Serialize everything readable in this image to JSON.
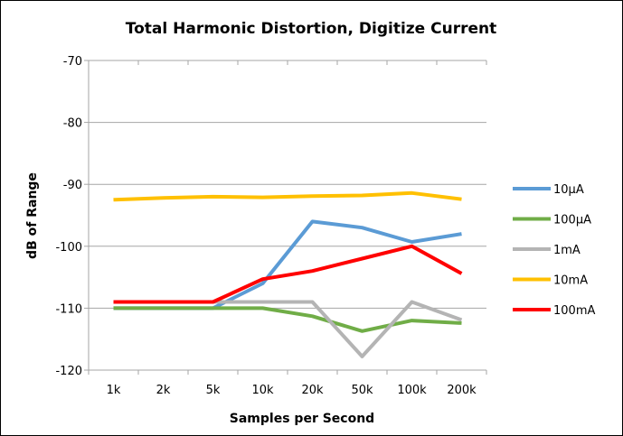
{
  "chart_data": {
    "type": "line",
    "title": "Total Harmonic Distortion, Digitize Current",
    "xlabel": "Samples per Second",
    "ylabel": "dB of Range",
    "categories": [
      "1k",
      "2k",
      "5k",
      "10k",
      "20k",
      "50k",
      "100k",
      "200k"
    ],
    "ylim": [
      -120,
      -70
    ],
    "yticks": [
      -70,
      -80,
      -90,
      -100,
      -110,
      -120
    ],
    "ytick_labels": [
      "-70",
      "-80",
      "-90",
      "-100",
      "-110",
      "-120"
    ],
    "grid": "horizontal",
    "legend_position": "right",
    "series": [
      {
        "name": "10µA",
        "color": "#5b9bd5",
        "values": [
          -110,
          -110,
          -110,
          -106,
          -96,
          -97,
          -99.3,
          -98
        ]
      },
      {
        "name": "100µA",
        "color": "#70ad47",
        "values": [
          -110,
          -110,
          -110,
          -110,
          -111.3,
          -113.7,
          -112,
          -112.4
        ]
      },
      {
        "name": "1mA",
        "color": "#b4b4b4",
        "values": [
          -109,
          -109,
          -109,
          -109,
          -109,
          -117.8,
          -109,
          -111.9
        ]
      },
      {
        "name": "10mA",
        "color": "#ffc000",
        "values": [
          -92.5,
          -92.2,
          -92,
          -92.1,
          -91.9,
          -91.8,
          -91.4,
          -92.4
        ]
      },
      {
        "name": "100mA",
        "color": "#ff0000",
        "values": [
          -109,
          -109,
          -109,
          -105.3,
          -104,
          -102,
          -100,
          -104.4
        ]
      }
    ]
  }
}
